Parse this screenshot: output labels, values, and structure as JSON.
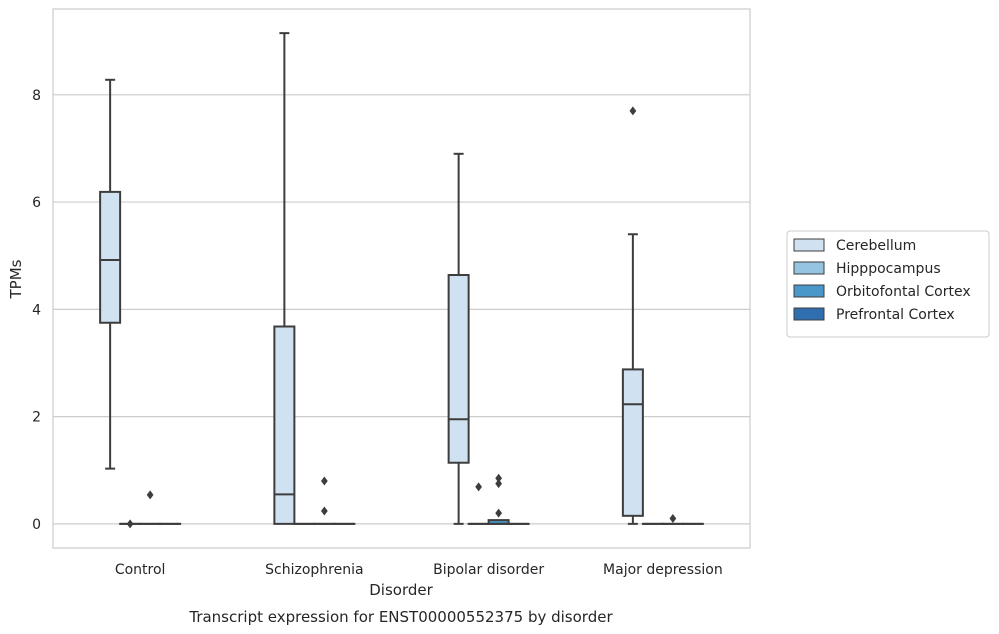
{
  "chart_data": {
    "type": "box",
    "xlabel": "Disorder",
    "ylabel": "TPMs",
    "caption": "Transcript expression for ENST00000552375 by disorder",
    "ylim": [
      -0.45,
      9.6
    ],
    "yticks": [
      "0",
      "2",
      "4",
      "6",
      "8"
    ],
    "grid": "horizontal",
    "legend_position": "right",
    "categories": [
      "Control",
      "Schizophrenia",
      "Bipolar disorder",
      "Major depression"
    ],
    "series": [
      {
        "name": "Cerebellum",
        "color": "#d0e1f2",
        "boxes": [
          {
            "q1": 3.75,
            "median": 4.92,
            "q3": 6.19,
            "whisker_low": 1.03,
            "whisker_high": 8.28,
            "outliers": []
          },
          {
            "q1": 0.0,
            "median": 0.55,
            "q3": 3.68,
            "whisker_low": 0.0,
            "whisker_high": 9.15,
            "outliers": []
          },
          {
            "q1": 1.14,
            "median": 1.95,
            "q3": 4.64,
            "whisker_low": 0.0,
            "whisker_high": 6.9,
            "outliers": []
          },
          {
            "q1": 0.15,
            "median": 2.23,
            "q3": 2.88,
            "whisker_low": 0.0,
            "whisker_high": 5.4,
            "outliers": [
              7.7
            ]
          }
        ]
      },
      {
        "name": "Hipppocampus",
        "color": "#94c4df",
        "boxes": [
          {
            "q1": 0.0,
            "median": 0.0,
            "q3": 0.0,
            "whisker_low": 0.0,
            "whisker_high": 0.0,
            "outliers": [
              0.0
            ]
          },
          {
            "q1": 0.0,
            "median": 0.0,
            "q3": 0.0,
            "whisker_low": 0.0,
            "whisker_high": 0.0,
            "outliers": []
          },
          {
            "q1": 0.0,
            "median": 0.0,
            "q3": 0.0,
            "whisker_low": 0.0,
            "whisker_high": 0.0,
            "outliers": [
              0.69
            ]
          },
          {
            "q1": 0.0,
            "median": 0.0,
            "q3": 0.0,
            "whisker_low": 0.0,
            "whisker_high": 0.0,
            "outliers": []
          }
        ]
      },
      {
        "name": "Orbitofontal Cortex",
        "color": "#4a98c9",
        "boxes": [
          {
            "q1": 0.0,
            "median": 0.0,
            "q3": 0.0,
            "whisker_low": 0.0,
            "whisker_high": 0.0,
            "outliers": [
              0.54
            ]
          },
          {
            "q1": 0.0,
            "median": 0.0,
            "q3": 0.0,
            "whisker_low": 0.0,
            "whisker_high": 0.0,
            "outliers": [
              0.8,
              0.24
            ]
          },
          {
            "q1": 0.0,
            "median": 0.0,
            "q3": 0.07,
            "whisker_low": 0.0,
            "whisker_high": 0.07,
            "outliers": [
              0.85,
              0.75,
              0.2
            ]
          },
          {
            "q1": 0.0,
            "median": 0.0,
            "q3": 0.0,
            "whisker_low": 0.0,
            "whisker_high": 0.0,
            "outliers": [
              0.1
            ]
          }
        ]
      },
      {
        "name": "Prefrontal Cortex",
        "color": "#2f6fb0",
        "boxes": [
          {
            "q1": 0.0,
            "median": 0.0,
            "q3": 0.0,
            "whisker_low": 0.0,
            "whisker_high": 0.0,
            "outliers": []
          },
          {
            "q1": 0.0,
            "median": 0.0,
            "q3": 0.0,
            "whisker_low": 0.0,
            "whisker_high": 0.0,
            "outliers": []
          },
          {
            "q1": 0.0,
            "median": 0.0,
            "q3": 0.0,
            "whisker_low": 0.0,
            "whisker_high": 0.0,
            "outliers": []
          },
          {
            "q1": 0.0,
            "median": 0.0,
            "q3": 0.0,
            "whisker_low": 0.0,
            "whisker_high": 0.0,
            "outliers": []
          }
        ]
      }
    ]
  }
}
